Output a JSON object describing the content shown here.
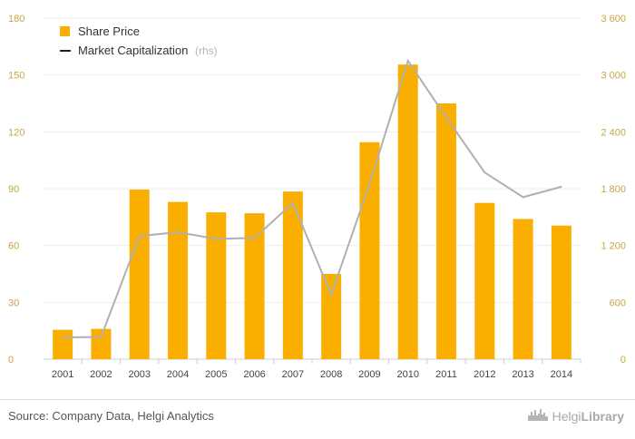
{
  "chart_data": {
    "type": "bar+line",
    "categories": [
      "2001",
      "2002",
      "2003",
      "2004",
      "2005",
      "2006",
      "2007",
      "2008",
      "2009",
      "2010",
      "2011",
      "2012",
      "2013",
      "2014"
    ],
    "series": [
      {
        "name": "Share Price",
        "type": "bar",
        "axis": "left",
        "values": [
          15.5,
          16,
          89.5,
          83,
          77.5,
          77,
          88.5,
          45,
          114.5,
          155.5,
          135,
          82.5,
          74,
          70.5
        ]
      },
      {
        "name": "Market Capitalization",
        "axis_note": "(rhs)",
        "type": "line",
        "axis": "right",
        "values": [
          230,
          235,
          1300,
          1340,
          1270,
          1280,
          1650,
          680,
          1850,
          3150,
          2550,
          1970,
          1710,
          1820
        ]
      }
    ],
    "left_axis": {
      "ylim": [
        0,
        180
      ],
      "ticks": [
        "0",
        "30",
        "60",
        "90",
        "120",
        "150",
        "180"
      ]
    },
    "right_axis": {
      "ylim": [
        0,
        3600
      ],
      "ticks": [
        "0",
        "600",
        "1 200",
        "1 800",
        "2 400",
        "3 000",
        "3 600"
      ]
    },
    "legend_position": "top-left",
    "colors": {
      "bar": "#f9ae00",
      "line": "#b0b0b0",
      "legend_line": "#222222",
      "tick": "#c8a640"
    }
  },
  "footer": {
    "source": "Source: Company Data, Helgi Analytics",
    "brand_prefix": "Helgi",
    "brand_suffix": "Library"
  }
}
